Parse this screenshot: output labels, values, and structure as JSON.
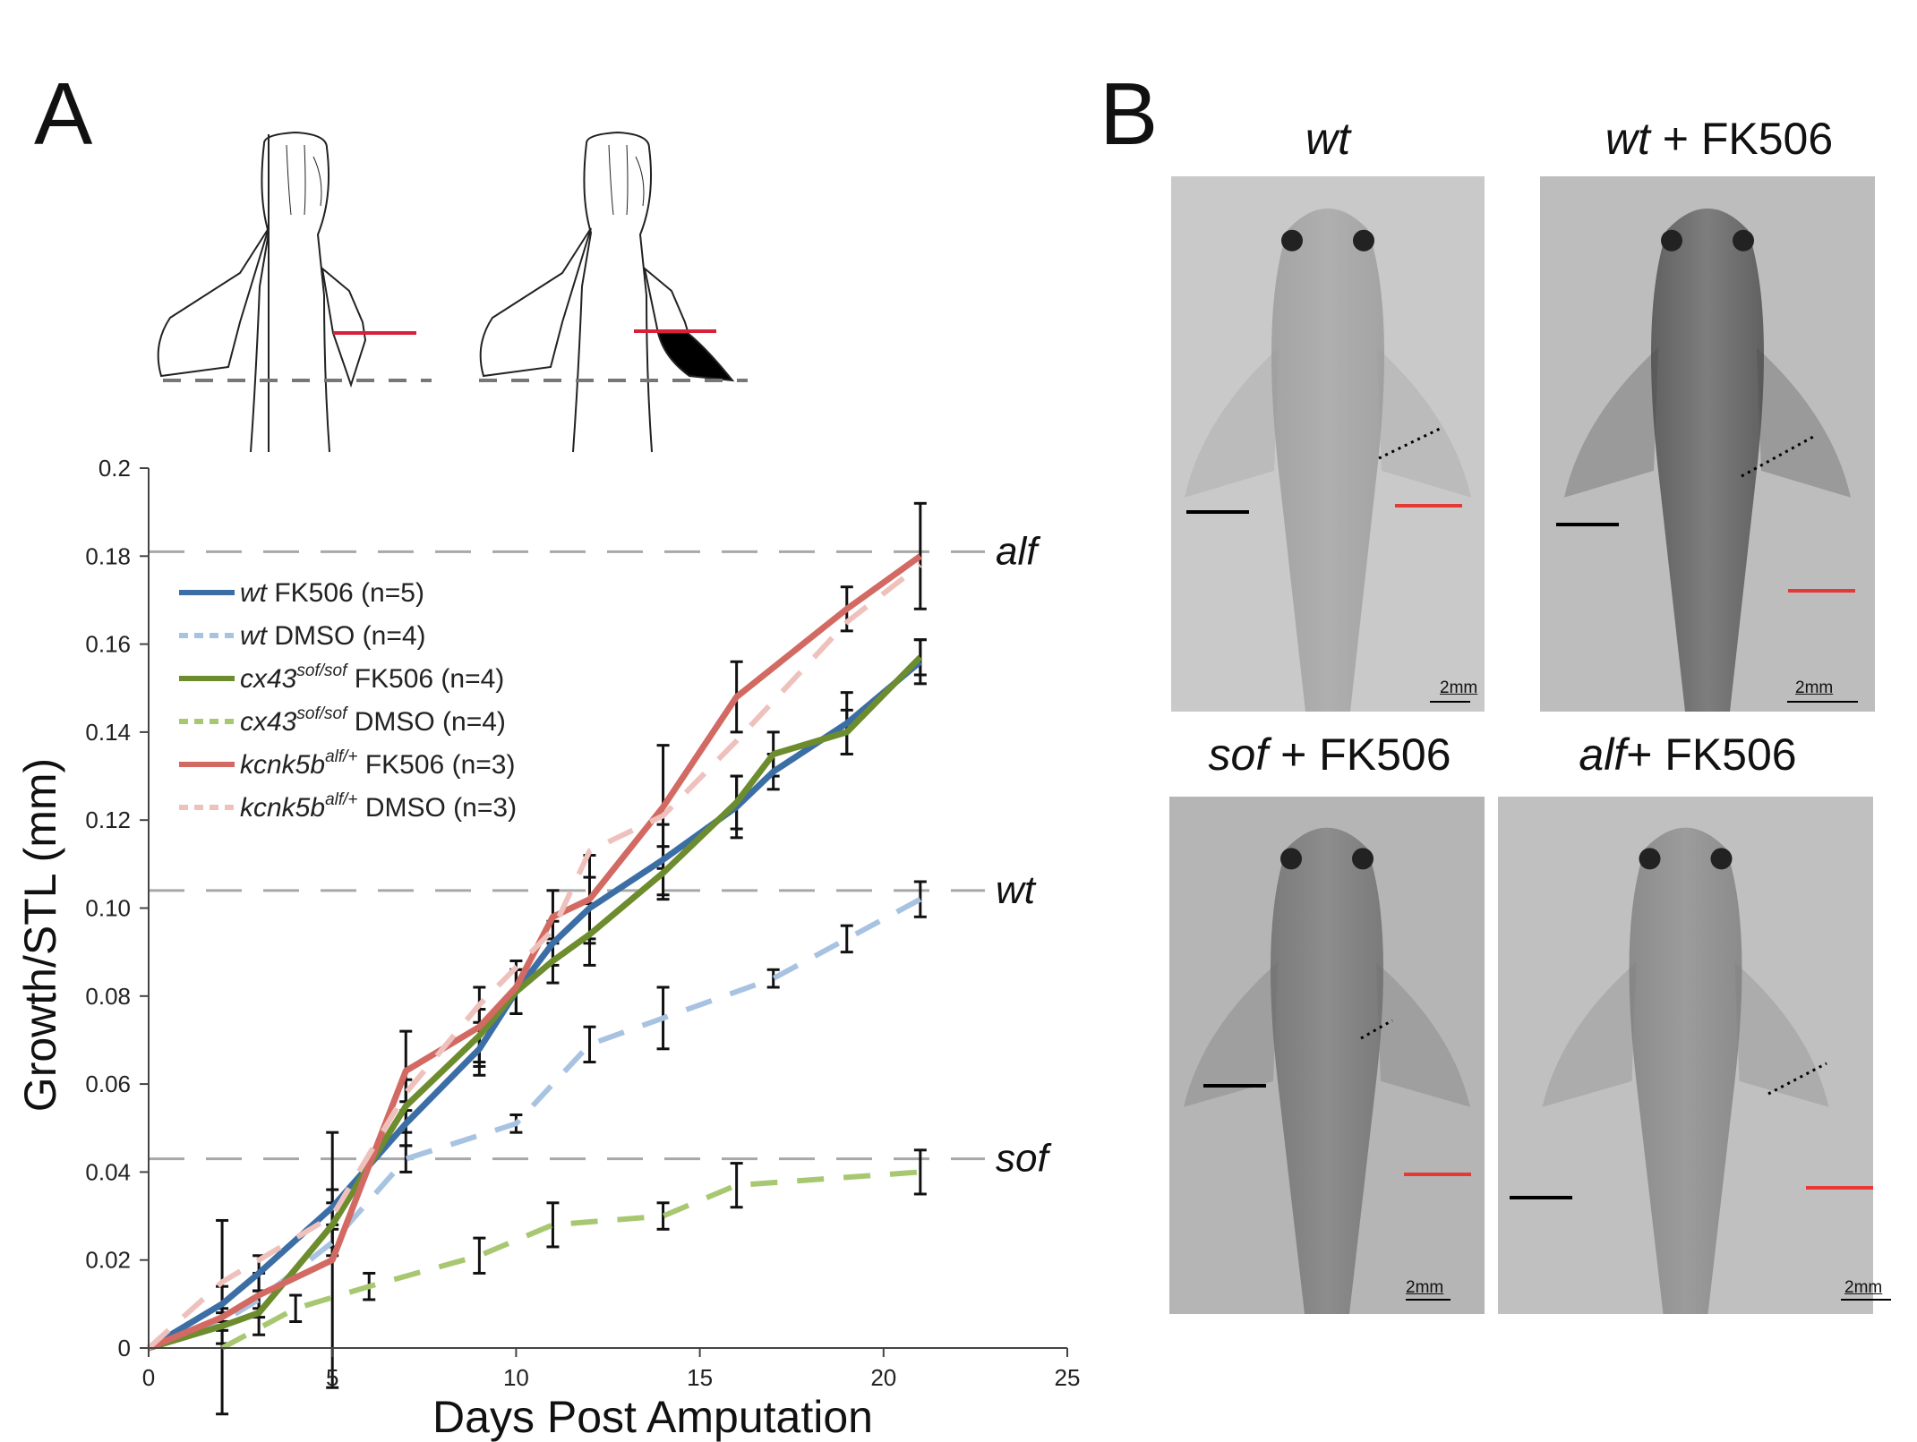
{
  "panels": {
    "a": "A",
    "b": "B"
  },
  "chart_data": {
    "type": "line",
    "xlabel": "Days Post Amputation",
    "ylabel": "Growth/STL (mm)",
    "xlim": [
      0,
      25
    ],
    "ylim": [
      0,
      0.2
    ],
    "xticks": [
      0,
      5,
      10,
      15,
      20,
      25
    ],
    "yticks": [
      0,
      0.02,
      0.04,
      0.06,
      0.08,
      0.1,
      0.12,
      0.14,
      0.16,
      0.18,
      0.2
    ],
    "ytick_labels": [
      "0",
      "0.02",
      "0.04",
      "0.06",
      "0.08",
      "0.10",
      "0.12",
      "0.14",
      "0.16",
      "0.18",
      "0.2"
    ],
    "grid": false,
    "legend_position": "top-left",
    "reference_lines": [
      {
        "label": "alf",
        "y": 0.181
      },
      {
        "label": "wt",
        "y": 0.104
      },
      {
        "label": "sof",
        "y": 0.043
      }
    ],
    "series": [
      {
        "name": "wt FK506 (n=5)",
        "gene": "wt",
        "allele": "",
        "suffix": " FK506 (n=5)",
        "color": "#3c6ea6",
        "dashed": false,
        "x": [
          0,
          2,
          3,
          5,
          7,
          9,
          10,
          11,
          12,
          14,
          16,
          17,
          19,
          21
        ],
        "y": [
          0,
          0.01,
          0.017,
          0.032,
          0.051,
          0.068,
          0.081,
          0.092,
          0.1,
          0.111,
          0.123,
          0.131,
          0.142,
          0.156
        ],
        "err": [
          0,
          0.004,
          0.004,
          0.004,
          0.005,
          0.006,
          0.005,
          0.005,
          0.007,
          0.008,
          0.007,
          0.004,
          0.007,
          0.005
        ]
      },
      {
        "name": "wt DMSO (n=4)",
        "gene": "wt",
        "allele": "",
        "suffix": " DMSO (n=4)",
        "color": "#a8c3e2",
        "dashed": true,
        "x": [
          0,
          2,
          3,
          5,
          7,
          10,
          12,
          14,
          17,
          19,
          21
        ],
        "y": [
          0,
          0.006,
          0.011,
          0.024,
          0.043,
          0.051,
          0.069,
          0.075,
          0.084,
          0.093,
          0.102
        ],
        "err": [
          0,
          0.002,
          0.002,
          0.003,
          0.003,
          0.002,
          0.004,
          0.007,
          0.002,
          0.003,
          0.004
        ]
      },
      {
        "name": "cx43sof/sof FK506 (n=4)",
        "gene": "cx43",
        "allele": "sof/sof",
        "suffix": " FK506 (n=4)",
        "color": "#6c8c2e",
        "dashed": false,
        "x": [
          0,
          2,
          3,
          5,
          7,
          9,
          10,
          11,
          12,
          14,
          16,
          17,
          19,
          21
        ],
        "y": [
          0,
          0.005,
          0.008,
          0.028,
          0.055,
          0.071,
          0.081,
          0.088,
          0.094,
          0.108,
          0.124,
          0.135,
          0.14,
          0.157
        ],
        "err": [
          0,
          0.004,
          0.005,
          0.005,
          0.006,
          0.006,
          0.005,
          0.005,
          0.007,
          0.006,
          0.006,
          0.005,
          0.005,
          0.004
        ]
      },
      {
        "name": "cx43sof/sof DMSO (n=4)",
        "gene": "cx43",
        "allele": "sof/sof",
        "suffix": " DMSO (n=4)",
        "color": "#a7c870",
        "dashed": true,
        "x": [
          2,
          4,
          6,
          9,
          11,
          14,
          16,
          21
        ],
        "y": [
          0,
          0.009,
          0.014,
          0.021,
          0.028,
          0.03,
          0.037,
          0.04
        ],
        "err": [
          0,
          0.003,
          0.003,
          0.004,
          0.005,
          0.003,
          0.005,
          0.005
        ]
      },
      {
        "name": "kcnk5balf/+ FK506 (n=3)",
        "gene": "kcnk5b",
        "allele": "alf/+",
        "suffix": " FK506 (n=3)",
        "color": "#d26a63",
        "dashed": false,
        "x": [
          0,
          2,
          3,
          5,
          7,
          9,
          10,
          11,
          12,
          14,
          16,
          19,
          21
        ],
        "y": [
          0,
          0.007,
          0.012,
          0.02,
          0.063,
          0.073,
          0.082,
          0.098,
          0.102,
          0.123,
          0.148,
          0.168,
          0.18
        ],
        "err": [
          0,
          0.022,
          0.005,
          0.029,
          0.009,
          0.009,
          0.006,
          0.006,
          0.01,
          0.014,
          0.008,
          0.005,
          0.012
        ]
      },
      {
        "name": "kcnk5balf/+ DMSO (n=3)",
        "gene": "kcnk5b",
        "allele": "alf/+",
        "suffix": " DMSO (n=3)",
        "color": "#efc1bd",
        "dashed": true,
        "x": [
          0,
          2,
          4,
          5,
          7,
          9,
          11,
          12,
          14,
          16,
          19,
          21
        ],
        "y": [
          0,
          0.015,
          0.025,
          0.03,
          0.058,
          0.078,
          0.095,
          0.113,
          0.121,
          0.138,
          0.165,
          0.178
        ],
        "err": [
          0,
          0,
          0,
          0,
          0,
          0,
          0,
          0,
          0,
          0,
          0,
          0
        ]
      }
    ]
  },
  "photos": [
    {
      "id": "wt",
      "gene": "wt",
      "suffix": "",
      "scale": "2mm"
    },
    {
      "id": "wt-fk506",
      "gene": "wt",
      "suffix": " + FK506",
      "scale": "2mm"
    },
    {
      "id": "sof-fk506",
      "gene": "sof",
      "suffix": " + FK506",
      "scale": "2mm"
    },
    {
      "id": "alf-fk506",
      "gene": "alf",
      "suffix": "+ FK506",
      "scale": "2mm"
    }
  ]
}
